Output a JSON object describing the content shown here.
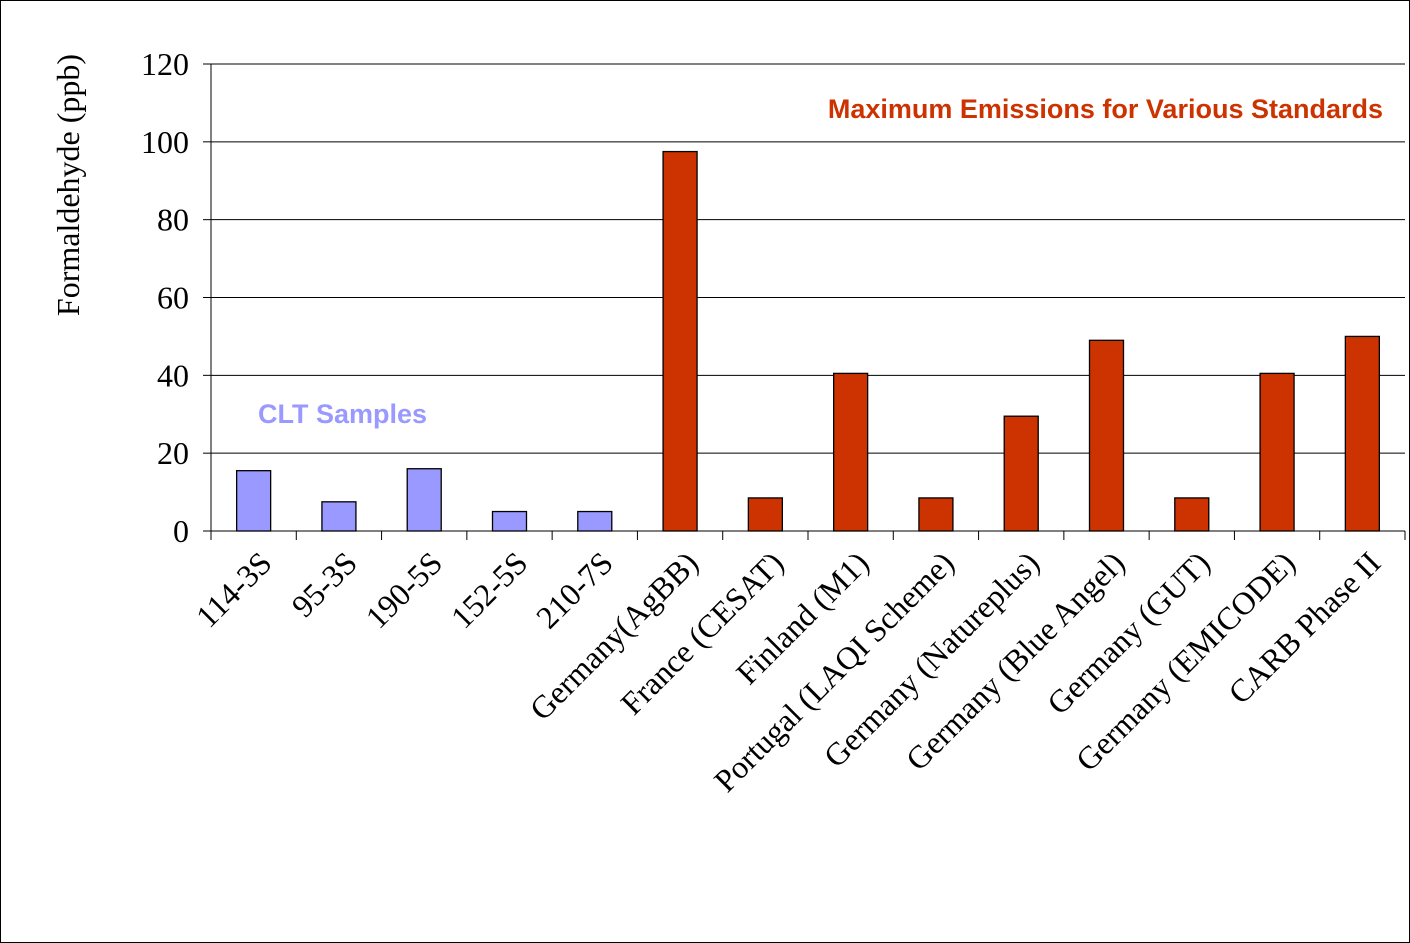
{
  "chart_data": {
    "type": "bar",
    "ylabel": "Formaldehyde (ppb)",
    "xlabel": "",
    "ylim": [
      0,
      120
    ],
    "yticks": [
      0,
      20,
      40,
      60,
      80,
      100,
      120
    ],
    "grid": true,
    "categories": [
      "114-3S",
      "95-3S",
      "190-5S",
      "152-5S",
      "210-7S",
      "Germany(AgBB)",
      "France (CESAT)",
      "Finland (M1)",
      "Portugal (LAQI Scheme)",
      "Germany (Natureplus)",
      "Germany (Blue Angel)",
      "Germany (GUT)",
      "Germany (EMICODE)",
      "CARB Phase II"
    ],
    "values": [
      15.5,
      7.5,
      16,
      5,
      5,
      97.5,
      8.5,
      40.5,
      8.5,
      29.5,
      49,
      8.5,
      40.5,
      50
    ],
    "groups": [
      {
        "label": "CLT Samples",
        "color": "#9999ff",
        "count": 5
      },
      {
        "label": "Maximum Emissions for Various Standards",
        "color": "#cc3300",
        "count": 9
      }
    ]
  }
}
